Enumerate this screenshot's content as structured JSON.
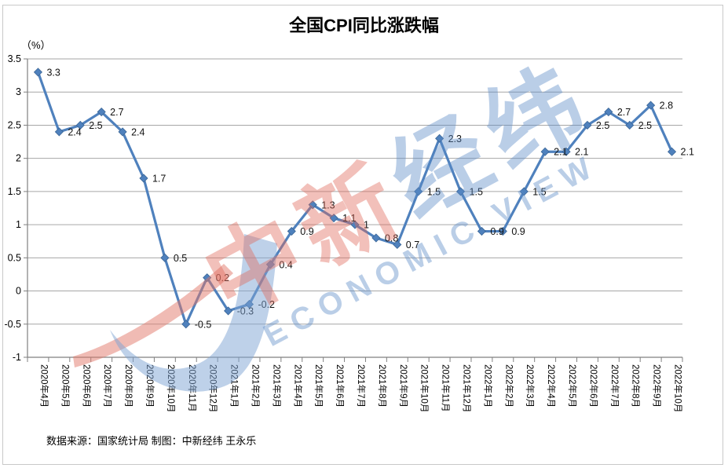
{
  "chart": {
    "title": "全国CPI同比涨跌幅",
    "unit_label": "（%）",
    "source": "数据来源：国家统计局 制图：中新经纬 王永乐"
  },
  "watermark": {
    "cn_red": "中新",
    "cn_blue": "经纬",
    "en": "ECONOMIC VIEW"
  },
  "chart_data": {
    "type": "line",
    "title": "全国CPI同比涨跌幅",
    "ylabel": "（%）",
    "categories": [
      "2020年4月",
      "2020年5月",
      "2020年6月",
      "2020年7月",
      "2020年8月",
      "2020年9月",
      "2020年10月",
      "2020年11月",
      "2020年12月",
      "2021年1月",
      "2021年2月",
      "2021年3月",
      "2021年4月",
      "2021年5月",
      "2021年6月",
      "2021年7月",
      "2021年8月",
      "2021年9月",
      "2021年10月",
      "2021年11月",
      "2021年12月",
      "2022年1月",
      "2022年2月",
      "2022年3月",
      "2022年4月",
      "2022年5月",
      "2022年6月",
      "2022年7月",
      "2022年8月",
      "2022年9月",
      "2022年10月"
    ],
    "values": [
      3.3,
      2.4,
      2.5,
      2.7,
      2.4,
      1.7,
      0.5,
      -0.5,
      0.2,
      -0.3,
      -0.2,
      0.4,
      0.9,
      1.3,
      1.1,
      1.0,
      0.8,
      0.7,
      1.5,
      2.3,
      1.5,
      0.9,
      0.9,
      1.5,
      2.1,
      2.1,
      2.5,
      2.7,
      2.5,
      2.8,
      2.1
    ],
    "point_labels": [
      "3.3",
      "2.4",
      "2.5",
      "2.7",
      "2.4",
      "1.7",
      "0.5",
      "-0.5",
      "0.2",
      "-0.3",
      "-0.2",
      "0.4",
      "0.9",
      "1.3",
      "1.1",
      "1",
      "0.8",
      "0.7",
      "1.5",
      "2.3",
      "1.5",
      "0.9",
      "0.9",
      "1.5",
      "2.1",
      "2.1",
      "2.5",
      "2.7",
      "2.5",
      "2.8",
      "2.1"
    ],
    "ylim": [
      -1,
      3.5
    ],
    "ytick_interval": 0.5,
    "ytick_labels": [
      "3.5",
      "3",
      "2.5",
      "2",
      "1.5",
      "1",
      "0.5",
      "0",
      "-0.5",
      "-1"
    ],
    "grid": true,
    "legend": "none",
    "line_color": "#4F81BD",
    "marker": "diamond",
    "source": "数据来源：国家统计局 制图：中新经纬 王永乐"
  }
}
